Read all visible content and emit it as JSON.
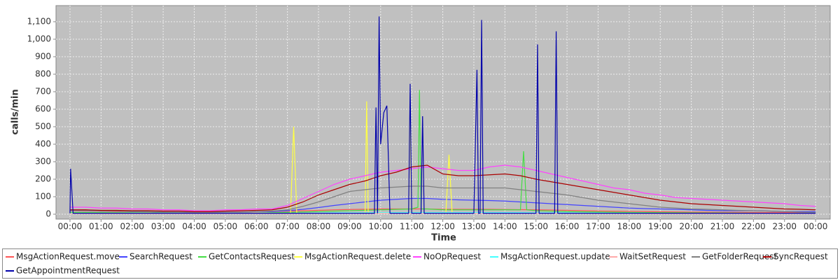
{
  "chart_data": {
    "type": "line",
    "x_label": "Time",
    "y_label": "calls/min",
    "xlim": [
      -0.45,
      24.47
    ],
    "ylim": [
      -28,
      1192
    ],
    "xticks": [
      {
        "value": 0,
        "label": "00:00"
      },
      {
        "value": 1,
        "label": "01:00"
      },
      {
        "value": 2,
        "label": "02:00"
      },
      {
        "value": 3,
        "label": "03:00"
      },
      {
        "value": 4,
        "label": "04:00"
      },
      {
        "value": 5,
        "label": "05:00"
      },
      {
        "value": 6,
        "label": "06:00"
      },
      {
        "value": 7,
        "label": "07:00"
      },
      {
        "value": 8,
        "label": "08:00"
      },
      {
        "value": 9,
        "label": "09:00"
      },
      {
        "value": 10,
        "label": "10:00"
      },
      {
        "value": 11,
        "label": "11:00"
      },
      {
        "value": 12,
        "label": "12:00"
      },
      {
        "value": 13,
        "label": "13:00"
      },
      {
        "value": 14,
        "label": "14:00"
      },
      {
        "value": 15,
        "label": "15:00"
      },
      {
        "value": 16,
        "label": "16:00"
      },
      {
        "value": 17,
        "label": "17:00"
      },
      {
        "value": 18,
        "label": "18:00"
      },
      {
        "value": 19,
        "label": "19:00"
      },
      {
        "value": 20,
        "label": "20:00"
      },
      {
        "value": 21,
        "label": "21:00"
      },
      {
        "value": 22,
        "label": "22:00"
      },
      {
        "value": 23,
        "label": "23:00"
      },
      {
        "value": 24,
        "label": "00:00"
      }
    ],
    "yticks": [
      0,
      100,
      200,
      300,
      400,
      500,
      600,
      700,
      800,
      900,
      {
        "value": 1000,
        "label": "1,000"
      },
      {
        "value": 1100,
        "label": "1,100"
      }
    ],
    "grid": true,
    "x": [
      0,
      0.5,
      1,
      1.5,
      2,
      2.5,
      3,
      3.5,
      4,
      4.5,
      5,
      5.5,
      6,
      6.5,
      7,
      7.5,
      8,
      8.5,
      9,
      9.5,
      10,
      10.5,
      11,
      11.5,
      12,
      12.5,
      13,
      13.5,
      14,
      14.5,
      15,
      15.5,
      16,
      16.5,
      17,
      17.5,
      18,
      18.5,
      19,
      19.5,
      20,
      20.5,
      21,
      21.5,
      22,
      22.5,
      23,
      23.5,
      24
    ],
    "series": [
      {
        "name": "MsgActionRequest.move",
        "color": "#ff5555",
        "values": [
          20,
          18,
          17,
          15,
          15,
          14,
          13,
          12,
          12,
          12,
          12,
          13,
          14,
          15,
          17,
          20,
          22,
          25,
          27,
          28,
          30,
          30,
          30,
          30,
          28,
          28,
          28,
          28,
          27,
          26,
          25,
          24,
          22,
          20,
          18,
          17,
          16,
          15,
          14,
          13,
          12,
          12,
          11,
          11,
          10,
          10,
          10,
          9,
          9
        ]
      },
      {
        "name": "SearchRequest",
        "color": "#4444ff",
        "values": [
          20,
          20,
          18,
          18,
          15,
          15,
          12,
          12,
          10,
          10,
          12,
          12,
          15,
          15,
          20,
          28,
          38,
          50,
          60,
          70,
          80,
          85,
          90,
          90,
          85,
          82,
          80,
          78,
          75,
          70,
          65,
          60,
          55,
          50,
          45,
          40,
          35,
          32,
          30,
          28,
          25,
          22,
          20,
          20,
          20,
          18,
          15,
          15,
          15
        ]
      },
      {
        "name": "GetContactsRequest",
        "color": "#44dd44",
        "x": [
          0,
          2,
          4,
          6,
          8,
          9,
          10,
          11,
          11.2,
          11.25,
          11.3,
          11.5,
          12,
          13,
          14,
          14.5,
          14.6,
          14.7,
          15,
          16,
          18,
          20,
          22,
          24
        ],
        "values": [
          10,
          8,
          6,
          6,
          15,
          20,
          25,
          30,
          40,
          710,
          30,
          30,
          25,
          25,
          25,
          25,
          360,
          25,
          20,
          15,
          10,
          8,
          6,
          5
        ]
      },
      {
        "name": "MsgActionRequest.delete",
        "color": "#ffff44",
        "x": [
          0,
          3,
          6,
          7.1,
          7.2,
          7.3,
          9,
          9.5,
          9.55,
          9.6,
          10.9,
          10.95,
          11,
          12.1,
          12.2,
          12.3,
          15,
          18,
          24
        ],
        "values": [
          5,
          5,
          5,
          5,
          500,
          5,
          8,
          8,
          645,
          8,
          8,
          580,
          8,
          8,
          340,
          8,
          6,
          5,
          5
        ]
      },
      {
        "name": "NoOpRequest",
        "color": "#ff44ff",
        "values": [
          40,
          40,
          35,
          35,
          30,
          30,
          25,
          25,
          20,
          20,
          25,
          25,
          30,
          30,
          50,
          90,
          130,
          170,
          200,
          220,
          240,
          250,
          260,
          270,
          260,
          250,
          250,
          270,
          280,
          270,
          250,
          230,
          210,
          190,
          170,
          150,
          140,
          120,
          110,
          95,
          90,
          85,
          80,
          75,
          70,
          65,
          60,
          50,
          45
        ]
      },
      {
        "name": "MsgActionRequest.update",
        "color": "#44ffff",
        "values": [
          5,
          5,
          5,
          5,
          5,
          5,
          5,
          5,
          5,
          5,
          5,
          5,
          5,
          5,
          5,
          6,
          7,
          8,
          8,
          8,
          9,
          9,
          9,
          9,
          9,
          9,
          9,
          9,
          9,
          9,
          8,
          8,
          8,
          7,
          7,
          6,
          6,
          6,
          5,
          5,
          5,
          5,
          5,
          5,
          5,
          5,
          5,
          5,
          5
        ]
      },
      {
        "name": "WaitSetRequest",
        "color": "#ffaaaa",
        "values": [
          3,
          3,
          3,
          3,
          3,
          3,
          3,
          3,
          3,
          3,
          3,
          3,
          3,
          3,
          3,
          4,
          4,
          4,
          5,
          5,
          5,
          5,
          5,
          5,
          5,
          5,
          5,
          5,
          5,
          5,
          5,
          5,
          4,
          4,
          4,
          4,
          4,
          3,
          3,
          3,
          3,
          3,
          3,
          3,
          3,
          3,
          3,
          3,
          3
        ]
      },
      {
        "name": "GetFolderRequest",
        "color": "#808080",
        "values": [
          20,
          20,
          18,
          18,
          15,
          15,
          12,
          12,
          10,
          10,
          12,
          12,
          15,
          18,
          25,
          45,
          70,
          100,
          130,
          140,
          150,
          155,
          160,
          160,
          150,
          150,
          150,
          150,
          150,
          140,
          130,
          120,
          110,
          95,
          80,
          70,
          60,
          50,
          40,
          35,
          30,
          28,
          25,
          22,
          20,
          18,
          15,
          12,
          10
        ]
      },
      {
        "name": "SyncRequest",
        "color": "#aa0000",
        "values": [
          25,
          25,
          22,
          22,
          20,
          20,
          18,
          18,
          15,
          15,
          18,
          20,
          22,
          25,
          40,
          70,
          110,
          140,
          170,
          190,
          220,
          240,
          270,
          280,
          230,
          220,
          220,
          225,
          230,
          220,
          200,
          185,
          170,
          155,
          140,
          125,
          110,
          95,
          80,
          70,
          60,
          55,
          50,
          45,
          40,
          35,
          30,
          28,
          25
        ]
      },
      {
        "name": "GetAppointmentRequest",
        "color": "#0000aa",
        "x": [
          0,
          0.02,
          0.1,
          5,
          9.8,
          9.85,
          9.9,
          9.95,
          10,
          10.1,
          10.2,
          10.3,
          10.9,
          10.95,
          11,
          11.3,
          11.35,
          11.4,
          13,
          13.1,
          13.15,
          13.2,
          13.25,
          13.3,
          15,
          15.05,
          15.1,
          15.6,
          15.65,
          15.7,
          20,
          24
        ],
        "values": [
          5,
          260,
          5,
          5,
          5,
          610,
          5,
          1130,
          400,
          580,
          620,
          5,
          5,
          745,
          5,
          5,
          560,
          5,
          5,
          825,
          5,
          5,
          1110,
          5,
          5,
          970,
          5,
          5,
          1045,
          5,
          5,
          5
        ]
      }
    ]
  }
}
